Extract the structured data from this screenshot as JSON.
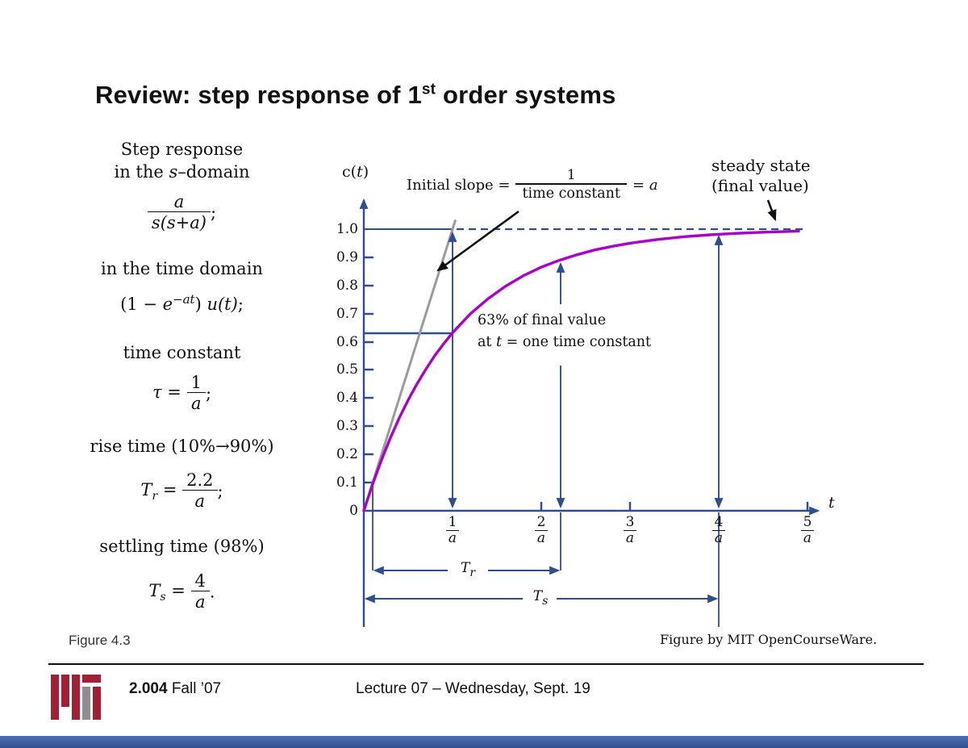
{
  "colors": {
    "axis_blue": "#2e4d92",
    "curve_magenta": "#aa00cc",
    "slope_gray": "#9b9b9b",
    "mit_maroon": "#a31f34",
    "mit_gray": "#8e8e90",
    "footer_bar_light": "#4f6fb5",
    "footer_bar_dark": "#31508f"
  },
  "slide": {
    "title_pre": "Review: step response of 1",
    "title_sup": "st",
    "title_post": " order systems",
    "figure_caption": "Figure 4.3",
    "credit": "Figure by MIT OpenCourseWare.",
    "footer": {
      "course": "2.004",
      "term": " Fall ’07",
      "lecture": "Lecture 07 – Wednesday, Sept. 19"
    }
  },
  "math_panel": {
    "heading1_line1": "Step response",
    "heading1_line2_pre": "in the ",
    "heading1_line2_var": "s",
    "heading1_line2_post": "–domain",
    "sdomain_frac": {
      "num": "a",
      "den": "s(s+a)",
      "punct": ";"
    },
    "heading2": "in the time domain",
    "time_expr": {
      "p1": "(1 − ",
      "e": "e",
      "sup": "−at",
      "p2": ") ",
      "p3": "u(t)",
      "punct": ";"
    },
    "heading3": "time constant",
    "tau_expr": {
      "lhs": "τ",
      "eq": " = ",
      "num": "1",
      "den": "a",
      "punct": ";"
    },
    "heading4": "rise time (10%→90%)",
    "tr_expr": {
      "base": "T",
      "sub": "r",
      "eq": " = ",
      "num": "2.2",
      "den": "a",
      "punct": ";"
    },
    "heading5": "settling time (98%)",
    "ts_expr": {
      "base": "T",
      "sub": "s",
      "eq": " = ",
      "num": "4",
      "den": "a",
      "punct": "."
    }
  },
  "chart_data": {
    "type": "line",
    "ylabel_pre": "c(",
    "ylabel_var": "t",
    "ylabel_post": ")",
    "xlabel": "t",
    "x_units": "multiples of 1/a",
    "xlim": [
      0,
      5.2
    ],
    "ylim": [
      0,
      1.05
    ],
    "grid": false,
    "ytick_labels": [
      "1.0",
      "0.9",
      "0.8",
      "0.7",
      "0.6",
      "0.5",
      "0.4",
      "0.3",
      "0.2",
      "0.1",
      "0"
    ],
    "xticks": [
      {
        "num": "1",
        "den": "a"
      },
      {
        "num": "2",
        "den": "a"
      },
      {
        "num": "3",
        "den": "a"
      },
      {
        "num": "4",
        "den": "a"
      },
      {
        "num": "5",
        "den": "a"
      }
    ],
    "series": [
      {
        "name": "step response c(t) = 1 − e^(−at)",
        "color": "#aa00cc",
        "t_over_tau": [
          0,
          0.1,
          0.2,
          0.3,
          0.4,
          0.5,
          0.6,
          0.7,
          0.8,
          0.9,
          1.0,
          1.2,
          1.4,
          1.6,
          1.8,
          2.0,
          2.2,
          2.4,
          2.6,
          2.8,
          3.0,
          3.3,
          3.6,
          3.9,
          4.2,
          4.5,
          4.9
        ],
        "c": [
          0,
          0.095,
          0.181,
          0.259,
          0.33,
          0.393,
          0.451,
          0.503,
          0.551,
          0.593,
          0.632,
          0.699,
          0.753,
          0.798,
          0.835,
          0.865,
          0.889,
          0.909,
          0.926,
          0.939,
          0.95,
          0.963,
          0.973,
          0.98,
          0.985,
          0.989,
          0.993
        ]
      },
      {
        "name": "initial slope line (slope = a)",
        "color": "#9b9b9b",
        "t_over_tau": [
          0,
          1.03
        ],
        "c": [
          0,
          1.03
        ]
      }
    ],
    "key_points": [
      {
        "t_over_tau": 1.0,
        "c": 0.63,
        "note": "63% of final value at one time constant"
      },
      {
        "t_over_tau": 2.2,
        "c": 0.9,
        "note": "rise time endpoint (90%)"
      },
      {
        "t_over_tau": 4.0,
        "c": 0.98,
        "note": "settling time (98%)"
      }
    ],
    "annotations": {
      "initial_slope": {
        "pre": "Initial slope =",
        "num": "1",
        "den": "time constant",
        "eq": "= ",
        "var": "a"
      },
      "steady_state_line1": "steady state",
      "steady_state_line2": "(final value)",
      "pct63_line1": "63% of final value",
      "pct63_line2_pre": "at ",
      "pct63_line2_var": "t",
      "pct63_line2_post": " = one time constant",
      "tr_base": "T",
      "tr_sub": "r",
      "ts_base": "T",
      "ts_sub": "s"
    }
  }
}
